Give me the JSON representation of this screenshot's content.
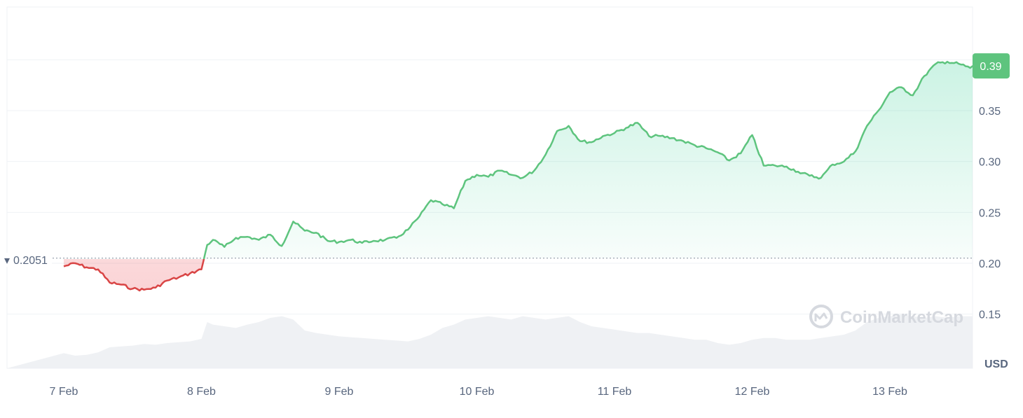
{
  "chart_data": {
    "type": "line",
    "unit": "USD",
    "x_ticks": [
      "7 Feb",
      "8 Feb",
      "9 Feb",
      "10 Feb",
      "11 Feb",
      "12 Feb",
      "13 Feb"
    ],
    "y_ticks": [
      "0.15",
      "0.20",
      "0.25",
      "0.30",
      "0.35"
    ],
    "ylim": [
      0.1,
      0.4
    ],
    "reference_price": {
      "label": "0.2051",
      "value": 0.2051
    },
    "last_price": {
      "label": "0.39",
      "value": 0.394
    },
    "colors": {
      "up": "#16c784",
      "up_line": "#5ec47e",
      "down": "#d94545",
      "grid": "#eff2f5",
      "volume": "#eceef2",
      "badge": "#5ec47e"
    },
    "series": [
      {
        "values_x_day_offset": null,
        "x": [
          "2025-02-07T00:00",
          "2025-02-07T02:00",
          "2025-02-07T04:00",
          "2025-02-07T06:00",
          "2025-02-07T08:00",
          "2025-02-07T10:00",
          "2025-02-07T12:00",
          "2025-02-07T14:00",
          "2025-02-07T16:00",
          "2025-02-07T18:00",
          "2025-02-07T20:00",
          "2025-02-07T22:00",
          "2025-02-08T00:00",
          "2025-02-08T01:00",
          "2025-02-08T02:00",
          "2025-02-08T04:00",
          "2025-02-08T06:00",
          "2025-02-08T08:00",
          "2025-02-08T10:00",
          "2025-02-08T12:00",
          "2025-02-08T14:00",
          "2025-02-08T16:00",
          "2025-02-08T18:00",
          "2025-02-08T20:00",
          "2025-02-08T22:00",
          "2025-02-09T00:00",
          "2025-02-09T02:00",
          "2025-02-09T04:00",
          "2025-02-09T06:00",
          "2025-02-09T08:00",
          "2025-02-09T10:00",
          "2025-02-09T12:00",
          "2025-02-09T14:00",
          "2025-02-09T16:00",
          "2025-02-09T18:00",
          "2025-02-09T20:00",
          "2025-02-09T22:00",
          "2025-02-10T00:00",
          "2025-02-10T02:00",
          "2025-02-10T04:00",
          "2025-02-10T06:00",
          "2025-02-10T08:00",
          "2025-02-10T10:00",
          "2025-02-10T12:00",
          "2025-02-10T14:00",
          "2025-02-10T16:00",
          "2025-02-10T18:00",
          "2025-02-10T20:00",
          "2025-02-10T22:00",
          "2025-02-11T00:00",
          "2025-02-11T02:00",
          "2025-02-11T04:00",
          "2025-02-11T06:00",
          "2025-02-11T08:00",
          "2025-02-11T10:00",
          "2025-02-11T12:00",
          "2025-02-11T14:00",
          "2025-02-11T16:00",
          "2025-02-11T18:00",
          "2025-02-11T20:00",
          "2025-02-11T22:00",
          "2025-02-12T00:00",
          "2025-02-12T02:00",
          "2025-02-12T04:00",
          "2025-02-12T06:00",
          "2025-02-12T08:00",
          "2025-02-12T10:00",
          "2025-02-12T12:00",
          "2025-02-12T14:00",
          "2025-02-12T16:00",
          "2025-02-12T18:00",
          "2025-02-12T20:00",
          "2025-02-12T22:00",
          "2025-02-13T00:00",
          "2025-02-13T02:00",
          "2025-02-13T04:00",
          "2025-02-13T06:00",
          "2025-02-13T08:00",
          "2025-02-13T10:00",
          "2025-02-13T12:00",
          "2025-02-13T14:00",
          "2025-02-13T16:00"
        ],
        "y": [
          0.197,
          0.2,
          0.196,
          0.194,
          0.181,
          0.179,
          0.175,
          0.174,
          0.176,
          0.183,
          0.186,
          0.19,
          0.194,
          0.218,
          0.223,
          0.216,
          0.225,
          0.226,
          0.223,
          0.228,
          0.217,
          0.241,
          0.232,
          0.23,
          0.222,
          0.221,
          0.223,
          0.22,
          0.222,
          0.223,
          0.225,
          0.233,
          0.246,
          0.262,
          0.258,
          0.254,
          0.281,
          0.287,
          0.285,
          0.291,
          0.287,
          0.284,
          0.291,
          0.307,
          0.33,
          0.335,
          0.32,
          0.319,
          0.325,
          0.328,
          0.333,
          0.338,
          0.325,
          0.325,
          0.323,
          0.32,
          0.316,
          0.313,
          0.309,
          0.301,
          0.308,
          0.326,
          0.296,
          0.296,
          0.295,
          0.29,
          0.286,
          0.284,
          0.297,
          0.3,
          0.31,
          0.335,
          0.35,
          0.368,
          0.373,
          0.365,
          0.384,
          0.396,
          0.398,
          0.396,
          0.392,
          0.397
        ],
        "volume_level": [
          0.18,
          0.15,
          0.16,
          0.19,
          0.25,
          0.26,
          0.27,
          0.29,
          0.28,
          0.3,
          0.31,
          0.32,
          0.35,
          0.55,
          0.52,
          0.5,
          0.48,
          0.52,
          0.55,
          0.6,
          0.62,
          0.58,
          0.45,
          0.42,
          0.4,
          0.38,
          0.37,
          0.36,
          0.35,
          0.34,
          0.33,
          0.32,
          0.35,
          0.4,
          0.48,
          0.52,
          0.58,
          0.6,
          0.62,
          0.6,
          0.58,
          0.62,
          0.6,
          0.58,
          0.6,
          0.62,
          0.55,
          0.5,
          0.48,
          0.46,
          0.44,
          0.42,
          0.42,
          0.4,
          0.38,
          0.36,
          0.34,
          0.34,
          0.3,
          0.28,
          0.3,
          0.34,
          0.36,
          0.36,
          0.34,
          0.34,
          0.34,
          0.36,
          0.38,
          0.4,
          0.45,
          0.55,
          0.6,
          0.62,
          0.64,
          0.62,
          0.6,
          0.62,
          0.6,
          0.62,
          0.62,
          0.62
        ]
      }
    ],
    "watermark": "CoinMarketCap",
    "grid": true
  }
}
